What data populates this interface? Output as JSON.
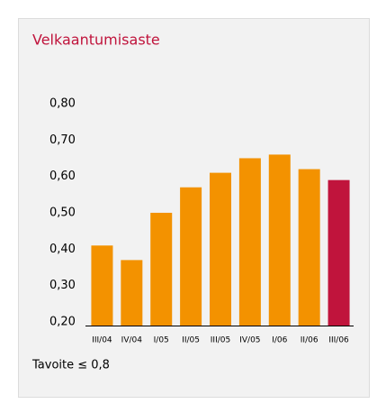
{
  "chart_data": {
    "type": "bar",
    "title": "Velkaantumisaste",
    "categories": [
      "III/04",
      "IV/04",
      "I/05",
      "II/05",
      "III/05",
      "IV/05",
      "I/06",
      "II/06",
      "III/06"
    ],
    "values": [
      0.42,
      0.38,
      0.51,
      0.58,
      0.62,
      0.66,
      0.67,
      0.63,
      0.6
    ],
    "colors": [
      "#f39200",
      "#f39200",
      "#f39200",
      "#f39200",
      "#f39200",
      "#f39200",
      "#f39200",
      "#f39200",
      "#c0143c"
    ],
    "ylim": [
      0.2,
      0.8
    ],
    "yticks": [
      {
        "value": 0.2,
        "label": "0,20"
      },
      {
        "value": 0.3,
        "label": "0,30"
      },
      {
        "value": 0.4,
        "label": "0,40"
      },
      {
        "value": 0.5,
        "label": "0,50"
      },
      {
        "value": 0.6,
        "label": "0,60"
      },
      {
        "value": 0.7,
        "label": "0,70"
      },
      {
        "value": 0.8,
        "label": "0,80"
      }
    ],
    "annotation": "Tavoite ≤ 0,8"
  }
}
